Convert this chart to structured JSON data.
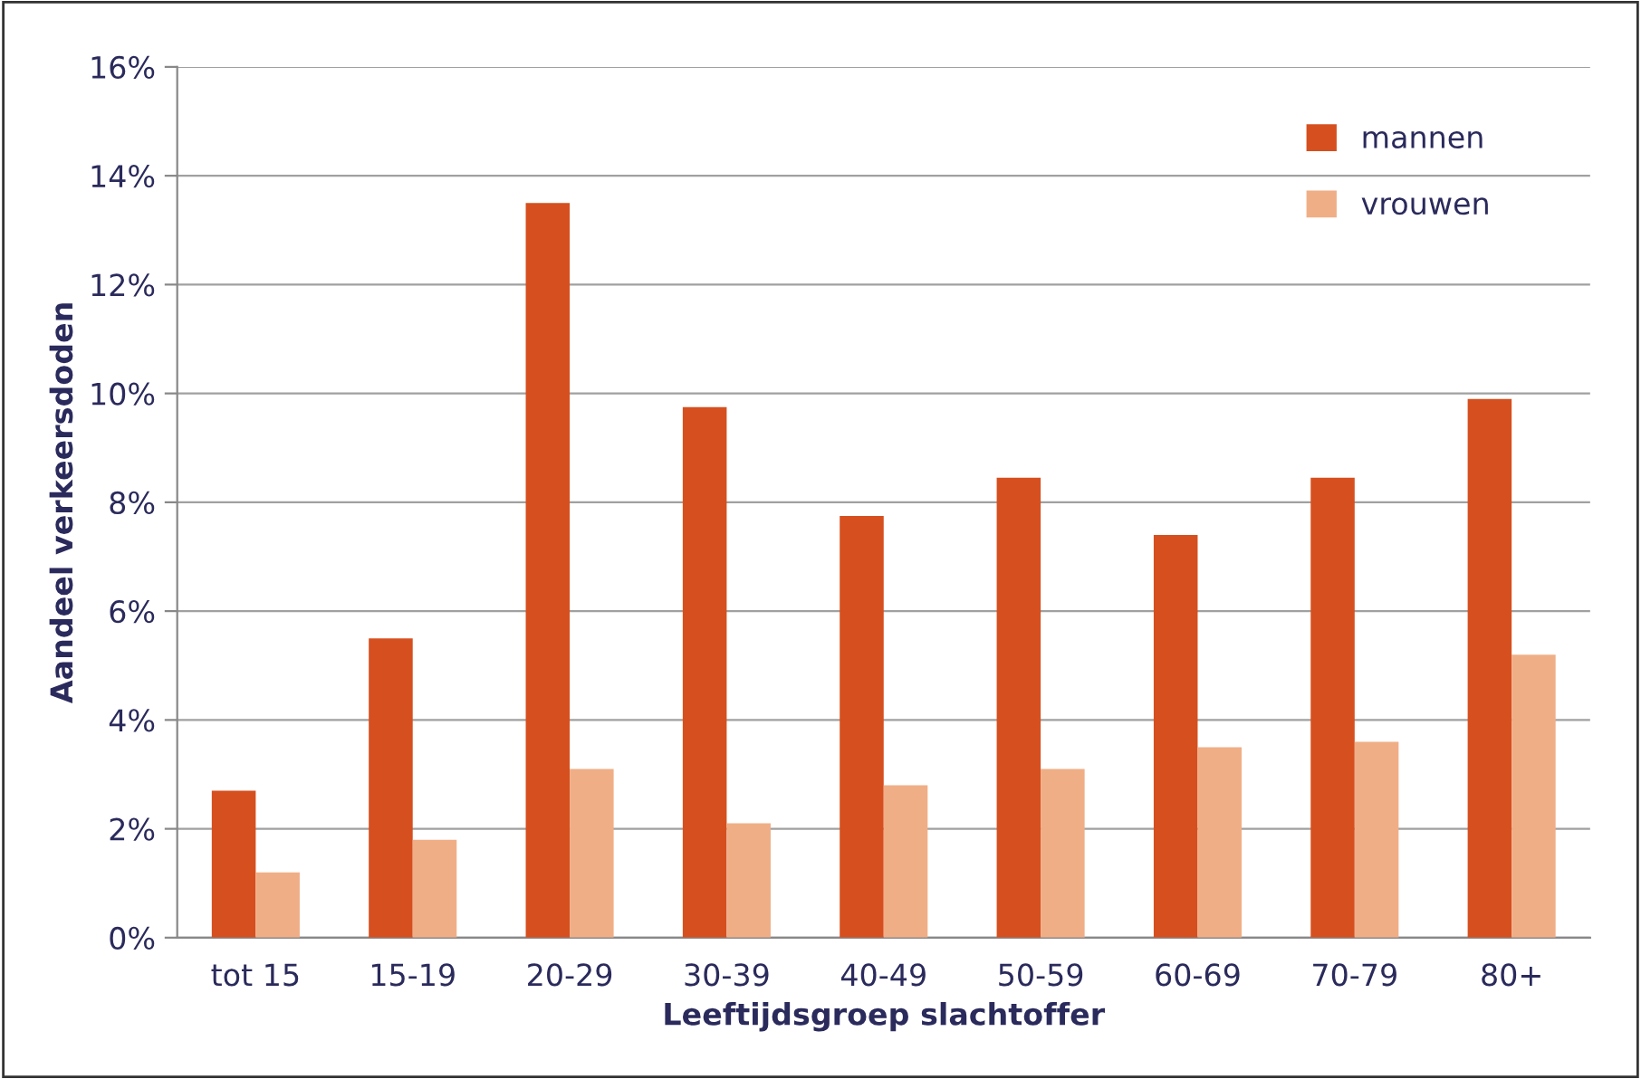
{
  "chart_data": {
    "type": "bar",
    "xlabel": "Leeftijdsgroep slachtoffer",
    "ylabel": "Aandeel verkeersdoden",
    "categories": [
      "tot 15",
      "15-19",
      "20-29",
      "30-39",
      "40-49",
      "50-59",
      "60-69",
      "70-79",
      "80+"
    ],
    "series": [
      {
        "name": "mannen",
        "color": "#d64f1f",
        "values": [
          2.7,
          5.5,
          13.5,
          9.75,
          7.75,
          8.45,
          7.4,
          8.45,
          9.9
        ]
      },
      {
        "name": "vrouwen",
        "color": "#f0ae86",
        "values": [
          1.2,
          1.8,
          3.1,
          2.1,
          2.8,
          3.1,
          3.5,
          3.6,
          5.2
        ]
      }
    ],
    "ylim": [
      0,
      16
    ],
    "yticks": [
      {
        "value": 0,
        "label": "0%"
      },
      {
        "value": 2,
        "label": "2%"
      },
      {
        "value": 4,
        "label": "4%"
      },
      {
        "value": 6,
        "label": "6%"
      },
      {
        "value": 8,
        "label": "8%"
      },
      {
        "value": 10,
        "label": "10%"
      },
      {
        "value": 12,
        "label": "12%"
      },
      {
        "value": 14,
        "label": "14%"
      },
      {
        "value": 16,
        "label": "16%"
      }
    ],
    "grid": "y",
    "legend": "top right"
  }
}
